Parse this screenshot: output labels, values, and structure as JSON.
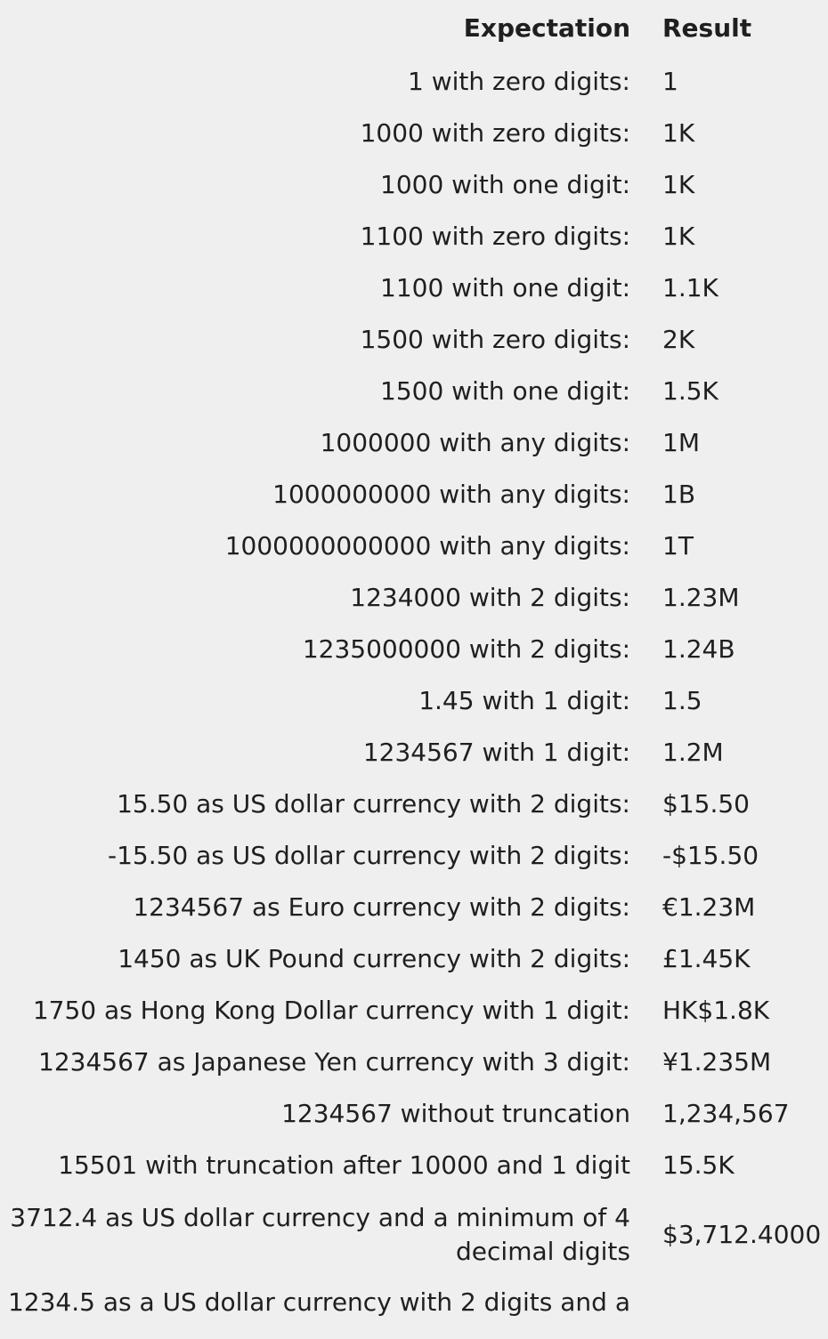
{
  "table": {
    "headers": {
      "expectation": "Expectation",
      "result": "Result"
    },
    "rows": [
      {
        "expectation": "1 with zero digits:",
        "result": "1"
      },
      {
        "expectation": "1000 with zero digits:",
        "result": "1K"
      },
      {
        "expectation": "1000 with one digit:",
        "result": "1K"
      },
      {
        "expectation": "1100 with zero digits:",
        "result": "1K"
      },
      {
        "expectation": "1100 with one digit:",
        "result": "1.1K"
      },
      {
        "expectation": "1500 with zero digits:",
        "result": "2K"
      },
      {
        "expectation": "1500 with one digit:",
        "result": "1.5K"
      },
      {
        "expectation": "1000000 with any digits:",
        "result": "1M"
      },
      {
        "expectation": "1000000000 with any digits:",
        "result": "1B"
      },
      {
        "expectation": "1000000000000 with any digits:",
        "result": "1T"
      },
      {
        "expectation": "1234000 with 2 digits:",
        "result": "1.23M"
      },
      {
        "expectation": "1235000000 with 2 digits:",
        "result": "1.24B"
      },
      {
        "expectation": "1.45 with 1 digit:",
        "result": "1.5"
      },
      {
        "expectation": "1234567 with 1 digit:",
        "result": "1.2M"
      },
      {
        "expectation": "15.50 as US dollar currency with 2 digits:",
        "result": "$15.50"
      },
      {
        "expectation": "-15.50 as US dollar currency with 2 digits:",
        "result": "-$15.50"
      },
      {
        "expectation": "1234567 as Euro currency with 2 digits:",
        "result": "€1.23M"
      },
      {
        "expectation": "1450 as UK Pound currency with 2 digits:",
        "result": "£1.45K"
      },
      {
        "expectation": "1750 as Hong Kong Dollar currency with 1 digit:",
        "result": "HK$1.8K"
      },
      {
        "expectation": "1234567 as Japanese Yen currency with 3 digit:",
        "result": "¥1.235M"
      },
      {
        "expectation": "1234567 without truncation",
        "result": "1,234,567"
      },
      {
        "expectation": "15501 with truncation after 10000 and 1 digit",
        "result": "15.5K"
      },
      {
        "expectation": "3712.4 as US dollar currency and a minimum of 4 decimal digits",
        "result": "$3,712.4000"
      },
      {
        "expectation": "1234.5 as a US dollar currency with 2 digits and a",
        "result": ""
      }
    ]
  }
}
